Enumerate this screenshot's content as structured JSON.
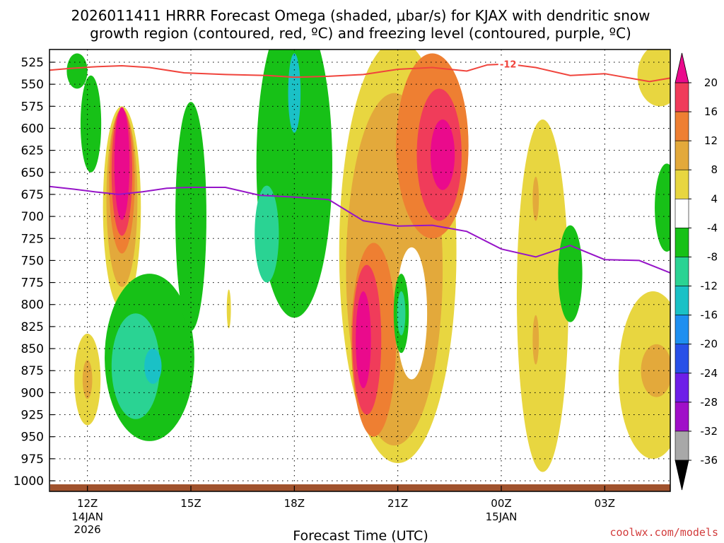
{
  "chart_data": {
    "type": "heatmap",
    "title_line1": "2026011411 HRRR Forecast Omega (shaded, μbar/s) for KJAX with dendritic snow",
    "title_line2": "growth region (contoured, red, ºC) and freezing level (contoured, purple, ºC)",
    "xlabel": "Forecast Time (UTC)",
    "credit": "coolwx.com/models",
    "x_range_hours": [
      10.9,
      28.9
    ],
    "y_range_mb": [
      525,
      1000
    ],
    "y_ticks": [
      525,
      550,
      575,
      600,
      625,
      650,
      675,
      700,
      725,
      750,
      775,
      800,
      825,
      850,
      875,
      900,
      925,
      950,
      975,
      1000
    ],
    "y_labels": [
      "525",
      "550",
      "575",
      "600",
      "625",
      "650",
      "675",
      "700",
      "725",
      "750",
      "775",
      "800",
      "825",
      "850",
      "875",
      "900",
      "925",
      "950",
      "975",
      "1000"
    ],
    "x_ticks": [
      {
        "hour": 12,
        "line1": "12Z",
        "line2": "14JAN",
        "line3": "2026"
      },
      {
        "hour": 15,
        "line1": "15Z",
        "line2": "",
        "line3": ""
      },
      {
        "hour": 18,
        "line1": "18Z",
        "line2": "",
        "line3": ""
      },
      {
        "hour": 21,
        "line1": "21Z",
        "line2": "",
        "line3": ""
      },
      {
        "hour": 24,
        "line1": "00Z",
        "line2": "15JAN",
        "line3": ""
      },
      {
        "hour": 27,
        "line1": "03Z",
        "line2": "",
        "line3": ""
      }
    ],
    "colorbar": {
      "levels": [
        20,
        16,
        12,
        8,
        4,
        -4,
        -8,
        -12,
        -16,
        -20,
        -24,
        -28,
        -32,
        -36
      ],
      "labels": [
        "20",
        "16",
        "12",
        "8",
        "4",
        "-4",
        "-8",
        "-12",
        "-16",
        "-20",
        "-24",
        "-28",
        "-32",
        "-36"
      ],
      "colors": [
        "#f03c5a",
        "#ee7f32",
        "#e3a93b",
        "#e8d640",
        "#ffffff",
        "#17c117",
        "#2ad393",
        "#1ac1c6",
        "#1e8ff0",
        "#2850e8",
        "#6e1ee8",
        "#a00fc8",
        "#a8a8a8"
      ],
      "top_color": "#ea0a8c",
      "bottom_color": "#000000"
    },
    "dgz_contour": {
      "label": "-12",
      "label_hour": 24.2,
      "color": "#f0443c",
      "points": [
        [
          10.9,
          534
        ],
        [
          11.5,
          532
        ],
        [
          12.3,
          530
        ],
        [
          13.0,
          529
        ],
        [
          13.8,
          531
        ],
        [
          14.8,
          537
        ],
        [
          16.0,
          539
        ],
        [
          17.2,
          540
        ],
        [
          18.0,
          542
        ],
        [
          19.0,
          541
        ],
        [
          20.0,
          539
        ],
        [
          21.0,
          533
        ],
        [
          22.0,
          531
        ],
        [
          22.5,
          533
        ],
        [
          23.0,
          535
        ],
        [
          23.6,
          528
        ],
        [
          24.2,
          527
        ],
        [
          25.0,
          531
        ],
        [
          26.0,
          540
        ],
        [
          27.0,
          538
        ],
        [
          28.3,
          547
        ],
        [
          28.9,
          543
        ]
      ]
    },
    "freezing_level": {
      "color": "#9614c8",
      "points": [
        [
          10.9,
          666
        ],
        [
          11.6,
          669
        ],
        [
          12.2,
          672
        ],
        [
          12.9,
          675
        ],
        [
          13.6,
          672
        ],
        [
          14.3,
          668
        ],
        [
          15.0,
          667
        ],
        [
          16.0,
          667
        ],
        [
          17.0,
          676
        ],
        [
          18.0,
          678
        ],
        [
          19.0,
          681
        ],
        [
          20.0,
          705
        ],
        [
          21.0,
          711
        ],
        [
          22.0,
          710
        ],
        [
          23.0,
          717
        ],
        [
          24.0,
          737
        ],
        [
          25.0,
          746
        ],
        [
          26.0,
          733
        ],
        [
          27.0,
          749
        ],
        [
          28.0,
          750
        ],
        [
          28.9,
          764
        ]
      ]
    },
    "omega_regions": [
      {
        "cx": 13.0,
        "cy": 690,
        "rx": 0.55,
        "ry": 115,
        "color": "#e8d640"
      },
      {
        "cx": 13.0,
        "cy": 680,
        "rx": 0.45,
        "ry": 100,
        "color": "#e3a93b"
      },
      {
        "cx": 13.0,
        "cy": 660,
        "rx": 0.37,
        "ry": 82,
        "color": "#ee7f32"
      },
      {
        "cx": 13.0,
        "cy": 650,
        "rx": 0.3,
        "ry": 72,
        "color": "#f03c5a"
      },
      {
        "cx": 13.0,
        "cy": 640,
        "rx": 0.22,
        "ry": 64,
        "color": "#ea0a8c"
      },
      {
        "cx": 12.0,
        "cy": 885,
        "rx": 0.38,
        "ry": 52,
        "color": "#e8d640"
      },
      {
        "cx": 12.0,
        "cy": 885,
        "rx": 0.14,
        "ry": 22,
        "color": "#e3a93b"
      },
      {
        "cx": 12.1,
        "cy": 595,
        "rx": 0.3,
        "ry": 55,
        "color": "#17c117"
      },
      {
        "cx": 11.7,
        "cy": 535,
        "rx": 0.3,
        "ry": 20,
        "color": "#17c117"
      },
      {
        "cx": 13.8,
        "cy": 860,
        "rx": 1.3,
        "ry": 95,
        "color": "#17c117"
      },
      {
        "cx": 13.4,
        "cy": 870,
        "rx": 0.7,
        "ry": 60,
        "color": "#2ad393"
      },
      {
        "cx": 13.9,
        "cy": 870,
        "rx": 0.25,
        "ry": 20,
        "color": "#1ac1c6"
      },
      {
        "cx": 15.0,
        "cy": 700,
        "rx": 0.45,
        "ry": 130,
        "color": "#17c117"
      },
      {
        "cx": 16.1,
        "cy": 805,
        "rx": 0.06,
        "ry": 22,
        "color": "#e8d640"
      },
      {
        "cx": 18.0,
        "cy": 640,
        "rx": 1.1,
        "ry": 175,
        "color": "#17c117"
      },
      {
        "cx": 17.2,
        "cy": 720,
        "rx": 0.35,
        "ry": 55,
        "color": "#2ad393"
      },
      {
        "cx": 18.0,
        "cy": 560,
        "rx": 0.18,
        "ry": 45,
        "color": "#1ac1c6"
      },
      {
        "cx": 21.0,
        "cy": 740,
        "rx": 1.7,
        "ry": 240,
        "color": "#e8d640"
      },
      {
        "cx": 20.9,
        "cy": 760,
        "rx": 1.4,
        "ry": 200,
        "color": "#e3a93b"
      },
      {
        "cx": 20.3,
        "cy": 840,
        "rx": 0.65,
        "ry": 110,
        "color": "#ee7f32"
      },
      {
        "cx": 20.1,
        "cy": 840,
        "rx": 0.42,
        "ry": 85,
        "color": "#f03c5a"
      },
      {
        "cx": 20.0,
        "cy": 840,
        "rx": 0.22,
        "ry": 55,
        "color": "#ea0a8c"
      },
      {
        "cx": 22.0,
        "cy": 620,
        "rx": 1.05,
        "ry": 105,
        "color": "#ee7f32"
      },
      {
        "cx": 22.2,
        "cy": 630,
        "rx": 0.65,
        "ry": 75,
        "color": "#f03c5a"
      },
      {
        "cx": 22.3,
        "cy": 630,
        "rx": 0.35,
        "ry": 40,
        "color": "#ea0a8c"
      },
      {
        "cx": 21.4,
        "cy": 810,
        "rx": 0.45,
        "ry": 75,
        "color": "#ffffff"
      },
      {
        "cx": 21.1,
        "cy": 810,
        "rx": 0.22,
        "ry": 45,
        "color": "#17c117"
      },
      {
        "cx": 21.1,
        "cy": 810,
        "rx": 0.12,
        "ry": 25,
        "color": "#2ad393"
      },
      {
        "cx": 25.2,
        "cy": 790,
        "rx": 0.75,
        "ry": 200,
        "color": "#e8d640"
      },
      {
        "cx": 25.0,
        "cy": 680,
        "rx": 0.09,
        "ry": 25,
        "color": "#e3a93b"
      },
      {
        "cx": 25.0,
        "cy": 840,
        "rx": 0.09,
        "ry": 28,
        "color": "#e3a93b"
      },
      {
        "cx": 26.0,
        "cy": 765,
        "rx": 0.35,
        "ry": 55,
        "color": "#17c117"
      },
      {
        "cx": 28.4,
        "cy": 880,
        "rx": 1.0,
        "ry": 95,
        "color": "#e8d640"
      },
      {
        "cx": 28.5,
        "cy": 875,
        "rx": 0.45,
        "ry": 30,
        "color": "#e3a93b"
      },
      {
        "cx": 28.6,
        "cy": 540,
        "rx": 0.65,
        "ry": 35,
        "color": "#e8d640"
      },
      {
        "cx": 28.8,
        "cy": 690,
        "rx": 0.35,
        "ry": 50,
        "color": "#17c117"
      }
    ],
    "terrain_color": "#a0522d"
  }
}
